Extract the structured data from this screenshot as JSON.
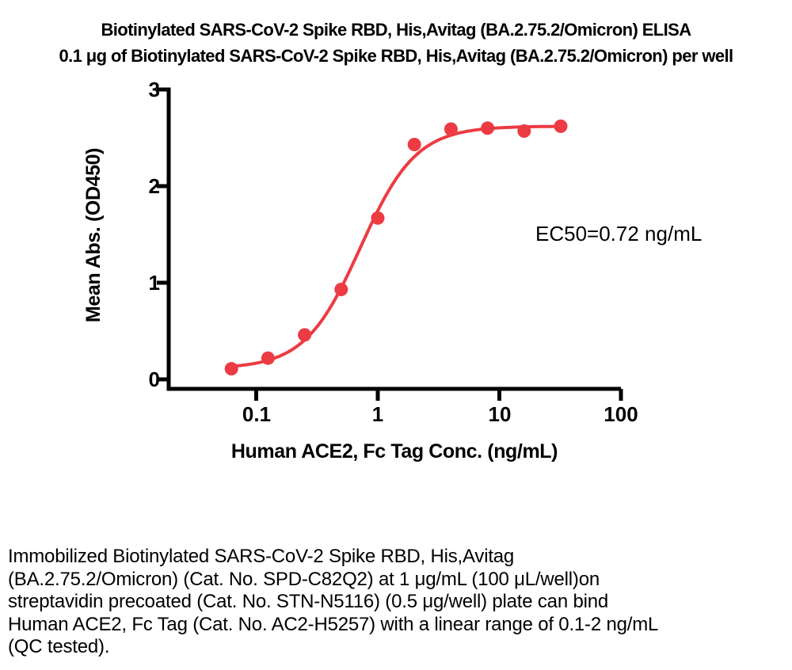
{
  "title": {
    "line1": "Biotinylated SARS-CoV-2 Spike RBD, His,Avitag (BA.2.75.2/Omicron) ELISA",
    "line2": "0.1 μg of Biotinylated SARS-CoV-2 Spike RBD, His,Avitag (BA.2.75.2/Omicron) per well"
  },
  "chart_data": {
    "type": "scatter",
    "x_scale": "log10",
    "series_name": "Human ACE2, Fc Tag",
    "x": [
      0.0625,
      0.125,
      0.25,
      0.5,
      1,
      2,
      4,
      8,
      16,
      32
    ],
    "y": [
      0.11,
      0.22,
      0.46,
      0.93,
      1.67,
      2.43,
      2.59,
      2.6,
      2.57,
      2.62
    ],
    "fit": {
      "model": "4PL",
      "bottom": 0.11,
      "top": 2.62,
      "ec50": 0.72,
      "hill": 1.9
    },
    "annotation": "EC50=0.72 ng/mL",
    "xlabel": "Human ACE2, Fc Tag Conc. (ng/mL)",
    "ylabel": "Mean Abs. (OD450)",
    "x_ticks": [
      0.1,
      1,
      10,
      100
    ],
    "x_tick_labels": [
      "0.1",
      "1",
      "10",
      "100"
    ],
    "y_ticks": [
      0,
      1,
      2,
      3
    ],
    "y_tick_labels": [
      "0",
      "1",
      "2",
      "3"
    ],
    "xlim_log": [
      0.02,
      100
    ],
    "ylim": [
      0,
      3
    ],
    "grid": false,
    "legend": "none",
    "point_color": "#ec3b43",
    "curve_color": "#ec3b43",
    "axis_color": "#000000"
  },
  "footer": {
    "text": "Immobilized Biotinylated SARS-CoV-2 Spike RBD, His,Avitag\n(BA.2.75.2/Omicron) (Cat. No. SPD-C82Q2) at 1 μg/mL (100 μL/well)on\nstreptavidin precoated (Cat. No. STN-N5116) (0.5 μg/well) plate can bind\nHuman ACE2, Fc Tag (Cat. No. AC2-H5257) with a linear range of 0.1-2 ng/mL\n(QC tested)."
  }
}
